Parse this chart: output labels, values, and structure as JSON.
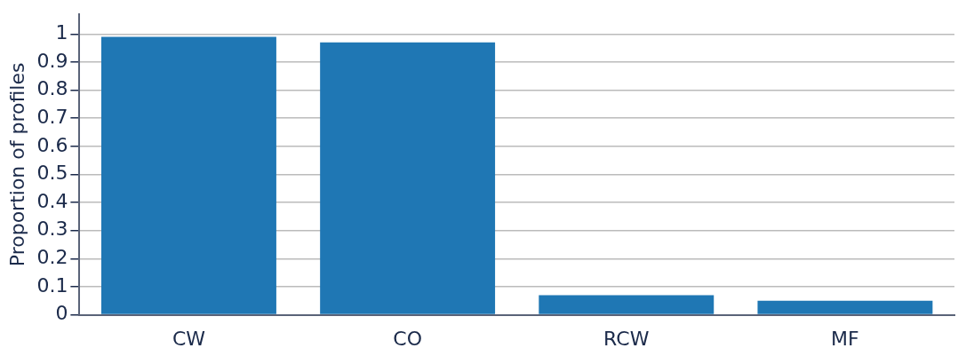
{
  "chart_data": {
    "type": "bar",
    "ylabel": "Proportion of profiles",
    "categories": [
      "CW",
      "CO",
      "RCW",
      "MF"
    ],
    "values": [
      0.99,
      0.97,
      0.07,
      0.05
    ],
    "color": "#1f77b4",
    "ylim": [
      0,
      1.07
    ],
    "yticks": [
      0,
      0.1,
      0.2,
      0.3,
      0.4,
      0.5,
      0.6,
      0.7,
      0.8,
      0.9,
      1
    ],
    "grid": "y"
  }
}
